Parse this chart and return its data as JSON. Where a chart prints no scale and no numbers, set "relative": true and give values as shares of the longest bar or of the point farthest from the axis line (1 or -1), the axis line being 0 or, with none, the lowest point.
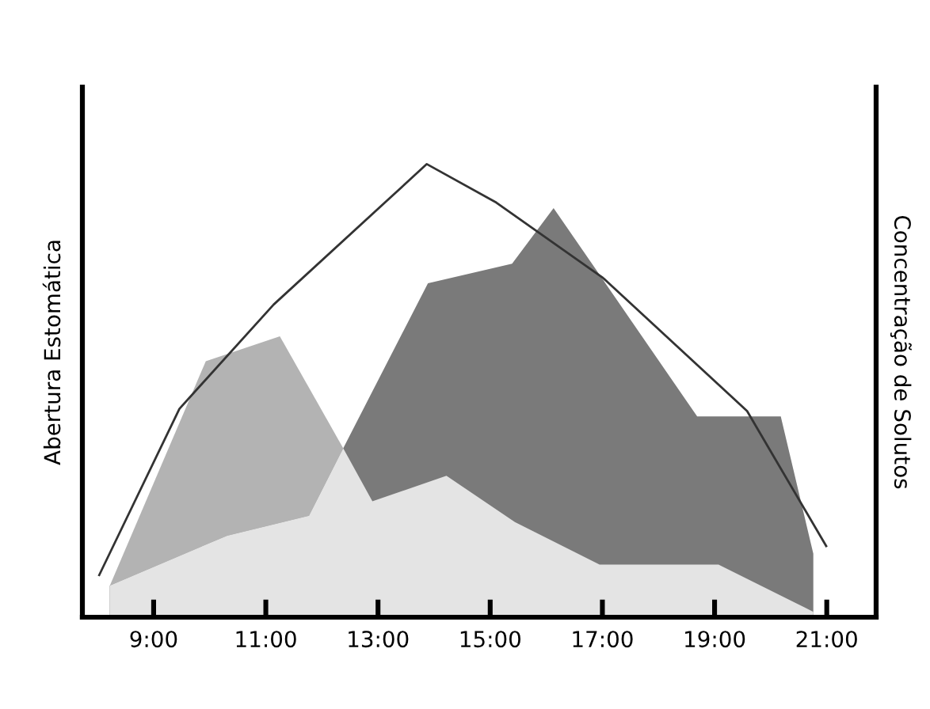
{
  "chart_data": {
    "type": "area",
    "relative": true,
    "ylabel": "Abertura Estomática",
    "y2label": "Concentração de Solutos",
    "xlim": [
      7.73,
      21.88
    ],
    "xticks": [
      {
        "value": 9,
        "label": "9:00"
      },
      {
        "value": 11,
        "label": "11:00"
      },
      {
        "value": 13,
        "label": "13:00"
      },
      {
        "value": 15,
        "label": "15:00"
      },
      {
        "value": 17,
        "label": "17:00"
      },
      {
        "value": 19,
        "label": "19:00"
      },
      {
        "value": 21,
        "label": "21:00"
      }
    ],
    "grid": false,
    "legend": false,
    "series": [
      {
        "color": "#b3b3b3",
        "x": [
          8.22,
          9.93,
          11.25,
          12.38
        ],
        "values": [
          0.07,
          0.565,
          0.62,
          0.373
        ]
      },
      {
        "color": "#7a7a7a",
        "x": [
          8.22,
          10.31,
          11.77,
          12.38,
          13.89,
          15.39,
          16.13,
          18.69,
          20.18,
          20.76
        ],
        "values": [
          0.07,
          0.18,
          0.224,
          0.373,
          0.737,
          0.78,
          0.903,
          0.443,
          0.443,
          0.14
        ]
      },
      {
        "color": "#e4e4e4",
        "x": [
          8.22,
          10.31,
          11.77,
          12.38,
          12.9,
          14.22,
          15.44,
          16.95,
          19.07,
          20.76
        ],
        "values": [
          0.07,
          0.18,
          0.224,
          0.373,
          0.256,
          0.312,
          0.21,
          0.116,
          0.116,
          0.012
        ]
      },
      {
        "type": "line",
        "color": "#333333",
        "x": [
          8.03,
          9.46,
          11.14,
          13.87,
          15.11,
          17.0,
          19.58,
          20.99
        ],
        "values": [
          0.093,
          0.46,
          0.69,
          1.0,
          0.915,
          0.75,
          0.455,
          0.157
        ]
      }
    ]
  }
}
